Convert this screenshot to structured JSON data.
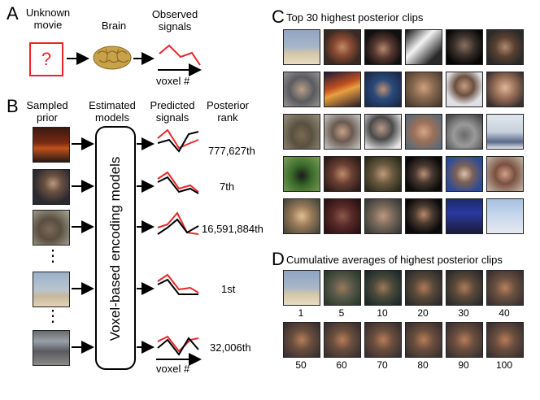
{
  "panel_a": {
    "letter": "A",
    "unknown_movie": "Unknown movie",
    "question_mark": "?",
    "brain": "Brain",
    "observed_signals": "Observed signals",
    "voxel_axis": "voxel #"
  },
  "panel_b": {
    "letter": "B",
    "sampled_prior": "Sampled prior",
    "estimated_models": "Estimated models",
    "predicted_signals": "Predicted signals",
    "posterior_rank": "Posterior rank",
    "encoding_box": "Voxel-based encoding models",
    "voxel_axis": "voxel #",
    "ranks": [
      "777,627th",
      "7th",
      "16,591,884th",
      "1st",
      "32,006th"
    ],
    "ellipsis": "⋮"
  },
  "panel_c": {
    "letter": "C",
    "title": "Top 30 highest posterior clips"
  },
  "panel_d": {
    "letter": "D",
    "title": "Cumulative averages of highest posterior clips",
    "row1": [
      "1",
      "5",
      "10",
      "20",
      "30",
      "40"
    ],
    "row2": [
      "50",
      "60",
      "70",
      "80",
      "90",
      "100"
    ]
  },
  "colors": {
    "red": "#e8262a",
    "black": "#000000"
  }
}
